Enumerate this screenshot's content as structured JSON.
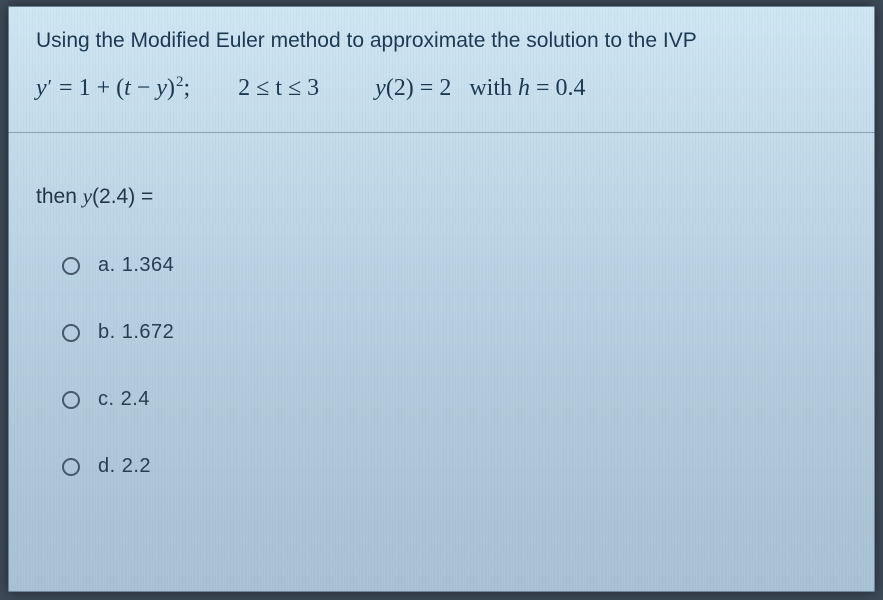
{
  "panel": {
    "background_gradient": [
      "#cfe6f3",
      "#c5dceb",
      "#b9d1e2",
      "#b1c9da",
      "#a9c2d4"
    ],
    "separator_color": "rgba(30,55,75,0.35)"
  },
  "question": {
    "title": "Using the Modified Euler method to approximate the solution to the IVP",
    "title_color": "#1b3a52",
    "title_fontsize": 21,
    "equation": {
      "lhs_var": "y",
      "lhs_prime": "′",
      "eq1": " = 1 + (",
      "tv": "t",
      "minus": " − ",
      "yv": "y",
      "rp": ")",
      "exp": "2",
      "semi": ";",
      "interval": "2 ≤ t ≤ 3",
      "ic_y": "y",
      "ic_paren": "(2) = 2",
      "with": "with",
      "hvar": "h",
      "hval": " = 0.4",
      "color": "#1b3a52",
      "fontsize": 24
    },
    "then": {
      "prefix": "then  ",
      "yv": "y",
      "arg": "(2.4) =",
      "color": "#24364a",
      "fontsize": 21
    }
  },
  "options": {
    "radio_border": "#47596c",
    "text_color": "#2a3d50",
    "fontsize": 20,
    "items": [
      {
        "letter": "a.",
        "value": "1.364"
      },
      {
        "letter": "b.",
        "value": "1.672"
      },
      {
        "letter": "c.",
        "value": "2.4"
      },
      {
        "letter": "d.",
        "value": "2.2"
      }
    ]
  }
}
